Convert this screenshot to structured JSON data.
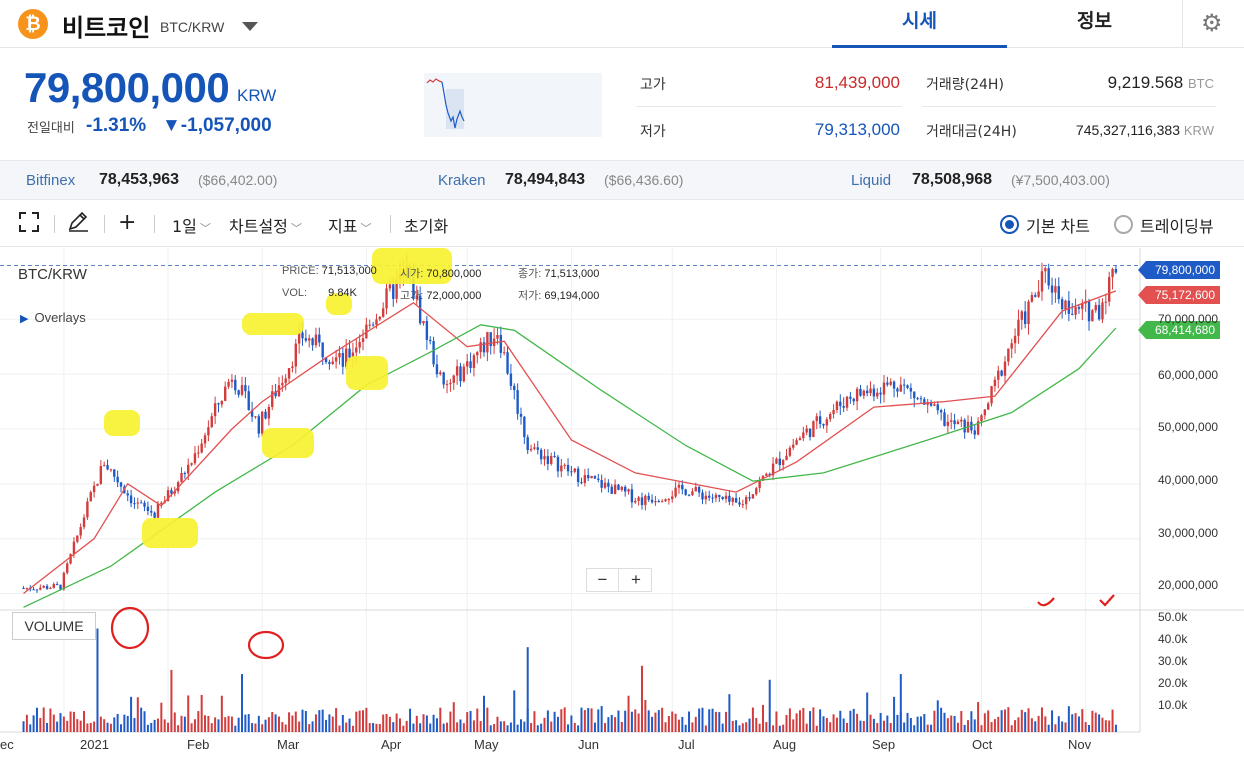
{
  "header": {
    "coin_symbol_glyph": "₿",
    "coin_name": "비트코인",
    "pair": "BTC/KRW",
    "tabs": [
      {
        "label": "시세",
        "active": true
      },
      {
        "label": "정보",
        "active": false
      }
    ],
    "settings_icon": "gear-icon",
    "accent_color": "#1655b8"
  },
  "ticker": {
    "price": "79,800,000",
    "unit": "KRW",
    "change_label": "전일대비",
    "change_rate": "-1.31%",
    "change_amount": "▼-1,057,000",
    "high_label": "고가",
    "high_value": "81,439,000",
    "low_label": "저가",
    "low_value": "79,313,000",
    "volume_label": "거래량(24H)",
    "volume_value": "9,219.568",
    "volume_unit": "BTC",
    "trade_value_label": "거래대금(24H)",
    "trade_value": "745,327,116,383",
    "trade_value_unit": "KRW"
  },
  "exchanges": [
    {
      "name": "Bitfinex",
      "price": "78,453,963",
      "sub": "($66,402.00)"
    },
    {
      "name": "Kraken",
      "price": "78,494,843",
      "sub": "($66,436.60)"
    },
    {
      "name": "Liquid",
      "price": "78,508,968",
      "sub": "(¥7,500,403.00)"
    }
  ],
  "toolbar": {
    "interval": "1일",
    "chart_settings": "차트설정",
    "indicators": "지표",
    "reset": "초기화",
    "basic_chart": "기본 차트",
    "trading_view": "트레이딩뷰"
  },
  "chart": {
    "pair": "BTC/KRW",
    "overlays": "Overlays",
    "volume_tag": "VOLUME",
    "ohlc": {
      "price_label": "PRICE:",
      "price": "71,513,000",
      "open_label": "시가:",
      "open": "70,800,000",
      "close_label": "종가:",
      "close": "71,513,000",
      "vol_label": "VOL:",
      "vol": "9.84K",
      "high_label": "고가:",
      "high": "72,000,000",
      "low_label": "저가:",
      "low": "69,194,000"
    },
    "price_tags": [
      {
        "value": "79,800,000",
        "color": "#1e5bc6"
      },
      {
        "value": "75,172,600",
        "color": "#e25050"
      },
      {
        "value": "68,414,680",
        "color": "#43b84a"
      }
    ],
    "zoom_out": "−",
    "zoom_in": "+"
  },
  "chart_data": {
    "type": "candlestick",
    "y_ticks": [
      "70,000,000",
      "60,000,000",
      "50,000,000",
      "40,000,000",
      "30,000,000",
      "20,000,000"
    ],
    "volume_ticks": [
      "50.0k",
      "40.0k",
      "30.0k",
      "20.0k",
      "10.0k"
    ],
    "months": [
      "ec",
      "2021",
      "Feb",
      "Mar",
      "Apr",
      "May",
      "Jun",
      "Jul",
      "Aug",
      "Sep",
      "Oct",
      "Nov"
    ],
    "ylim": [
      17000000,
      83000000
    ],
    "volume_ylim": [
      0,
      58000
    ],
    "close_points": [
      [
        "2020-12-20",
        21000000
      ],
      [
        "2020-12-31",
        21300000
      ],
      [
        "2021-01-08",
        36000000
      ],
      [
        "2021-01-13",
        44000000
      ],
      [
        "2021-01-22",
        36500000
      ],
      [
        "2021-01-28",
        34500000
      ],
      [
        "2021-02-08",
        44000000
      ],
      [
        "2021-02-20",
        60000000
      ],
      [
        "2021-02-28",
        50500000
      ],
      [
        "2021-03-13",
        67000000
      ],
      [
        "2021-03-25",
        62000000
      ],
      [
        "2021-04-13",
        79000000
      ],
      [
        "2021-04-24",
        57000000
      ],
      [
        "2021-05-10",
        68000000
      ],
      [
        "2021-05-19",
        47000000
      ],
      [
        "2021-06-01",
        42000000
      ],
      [
        "2021-06-22",
        37000000
      ],
      [
        "2021-07-05",
        39000000
      ],
      [
        "2021-07-21",
        36000000
      ],
      [
        "2021-08-07",
        48000000
      ],
      [
        "2021-08-23",
        56000000
      ],
      [
        "2021-09-06",
        58500000
      ],
      [
        "2021-09-21",
        51000000
      ],
      [
        "2021-09-30",
        50000000
      ],
      [
        "2021-10-10",
        66000000
      ],
      [
        "2021-10-20",
        78000000
      ],
      [
        "2021-10-28",
        71000000
      ],
      [
        "2021-11-05",
        72000000
      ],
      [
        "2021-11-10",
        79800000
      ]
    ],
    "ma_short": [
      [
        "2020-12-20",
        20000000
      ],
      [
        "2021-01-10",
        30000000
      ],
      [
        "2021-01-20",
        40000000
      ],
      [
        "2021-01-30",
        36000000
      ],
      [
        "2021-02-20",
        50000000
      ],
      [
        "2021-03-01",
        55000000
      ],
      [
        "2021-03-20",
        63000000
      ],
      [
        "2021-04-15",
        73000000
      ],
      [
        "2021-05-01",
        65000000
      ],
      [
        "2021-05-12",
        66000000
      ],
      [
        "2021-06-01",
        48000000
      ],
      [
        "2021-06-20",
        42000000
      ],
      [
        "2021-07-20",
        38500000
      ],
      [
        "2021-08-07",
        44000000
      ],
      [
        "2021-08-30",
        54000000
      ],
      [
        "2021-09-20",
        55000000
      ],
      [
        "2021-10-05",
        56000000
      ],
      [
        "2021-10-25",
        71500000
      ],
      [
        "2021-11-10",
        75172600
      ]
    ],
    "ma_long": [
      [
        "2020-12-20",
        17500000
      ],
      [
        "2021-01-15",
        25000000
      ],
      [
        "2021-02-15",
        38500000
      ],
      [
        "2021-03-10",
        47000000
      ],
      [
        "2021-04-01",
        58000000
      ],
      [
        "2021-04-20",
        64000000
      ],
      [
        "2021-05-05",
        69000000
      ],
      [
        "2021-05-15",
        68000000
      ],
      [
        "2021-06-10",
        57000000
      ],
      [
        "2021-07-05",
        47000000
      ],
      [
        "2021-07-25",
        40500000
      ],
      [
        "2021-08-15",
        42000000
      ],
      [
        "2021-09-15",
        48000000
      ],
      [
        "2021-10-10",
        53000000
      ],
      [
        "2021-10-30",
        61000000
      ],
      [
        "2021-11-10",
        68414680
      ]
    ]
  }
}
